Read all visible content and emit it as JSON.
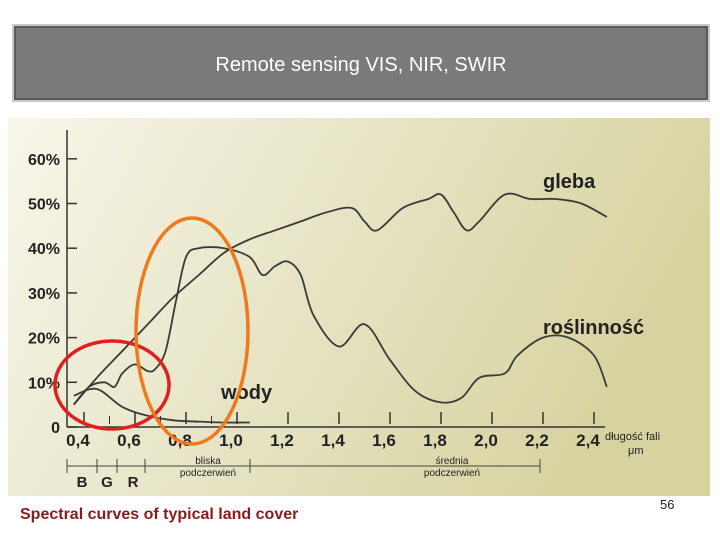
{
  "slide": {
    "title": "Remote sensing VIS, NIR, SWIR",
    "caption": "Spectral curves of typical land cover",
    "page_number": "56"
  },
  "colors": {
    "panel_top": "#f7f6ea",
    "panel_right": "#d7d3a0",
    "curve": "#3a3a3a",
    "circle_red": "#e02020",
    "circle_orange": "#ee7a1e",
    "title_bar": "#7a7a7a",
    "caption": "#8b1a1a"
  },
  "chart_data": {
    "type": "line",
    "title": "",
    "xlim": [
      0.3,
      2.55
    ],
    "ylim": [
      0,
      60
    ],
    "y_ticks": [
      0,
      10,
      20,
      30,
      40,
      50,
      60
    ],
    "y_tick_labels": [
      "0",
      "10%",
      "20%",
      "30%",
      "40%",
      "50%",
      "60%"
    ],
    "x_ticks": [
      0.4,
      0.6,
      0.8,
      1.0,
      1.2,
      1.4,
      1.6,
      1.8,
      2.0,
      2.2,
      2.4
    ],
    "x_tick_labels": [
      "0,4",
      "0,6",
      "0,8",
      "1,0",
      "1,2",
      "1,4",
      "1,6",
      "1,8",
      "2,0",
      "2,2",
      "2,4"
    ],
    "xlabel": [
      "długość fali",
      "μm"
    ],
    "bands_visible": [
      "B",
      "G",
      "R"
    ],
    "region_labels": [
      {
        "lines": [
          "bliska",
          "podczerwień"
        ]
      },
      {
        "lines": [
          "średnia",
          "podczerwień"
        ]
      }
    ],
    "series": [
      {
        "name": "gleba",
        "x": [
          0.36,
          0.45,
          0.55,
          0.65,
          0.75,
          0.85,
          0.95,
          1.05,
          1.15,
          1.25,
          1.35,
          1.45,
          1.5,
          1.55,
          1.65,
          1.75,
          1.8,
          1.85,
          1.9,
          1.95,
          2.05,
          2.15,
          2.25,
          2.35,
          2.45
        ],
        "y": [
          5,
          11,
          17,
          23,
          29,
          34,
          39,
          42,
          44,
          46,
          48,
          49,
          46,
          44,
          49,
          51,
          52,
          48,
          44,
          46,
          52,
          51,
          51,
          50,
          47
        ]
      },
      {
        "name": "roślinność",
        "x": [
          0.36,
          0.42,
          0.48,
          0.52,
          0.55,
          0.6,
          0.65,
          0.68,
          0.72,
          0.76,
          0.8,
          0.85,
          0.95,
          1.05,
          1.1,
          1.15,
          1.2,
          1.25,
          1.3,
          1.4,
          1.5,
          1.6,
          1.7,
          1.8,
          1.88,
          1.95,
          2.05,
          2.1,
          2.2,
          2.3,
          2.4,
          2.45
        ],
        "y": [
          5,
          9,
          10,
          9,
          12,
          14,
          12.5,
          13,
          17,
          28,
          38,
          40,
          40,
          38,
          34,
          36,
          37,
          34,
          25,
          18,
          23,
          15,
          8,
          5.5,
          6.5,
          11,
          12,
          16,
          20,
          20,
          16,
          9
        ]
      },
      {
        "name": "wody",
        "x": [
          0.36,
          0.45,
          0.55,
          0.65,
          0.75,
          0.85,
          0.95,
          1.05
        ],
        "y": [
          7,
          8.5,
          4.5,
          2.5,
          1.5,
          1.2,
          1.0,
          1.0
        ]
      }
    ],
    "series_labels": [
      "gleba",
      "roślinność",
      "wody"
    ],
    "annotations": [
      {
        "shape": "ellipse",
        "color": "red"
      },
      {
        "shape": "ellipse",
        "color": "orange"
      }
    ],
    "grid": false,
    "legend": "none"
  }
}
